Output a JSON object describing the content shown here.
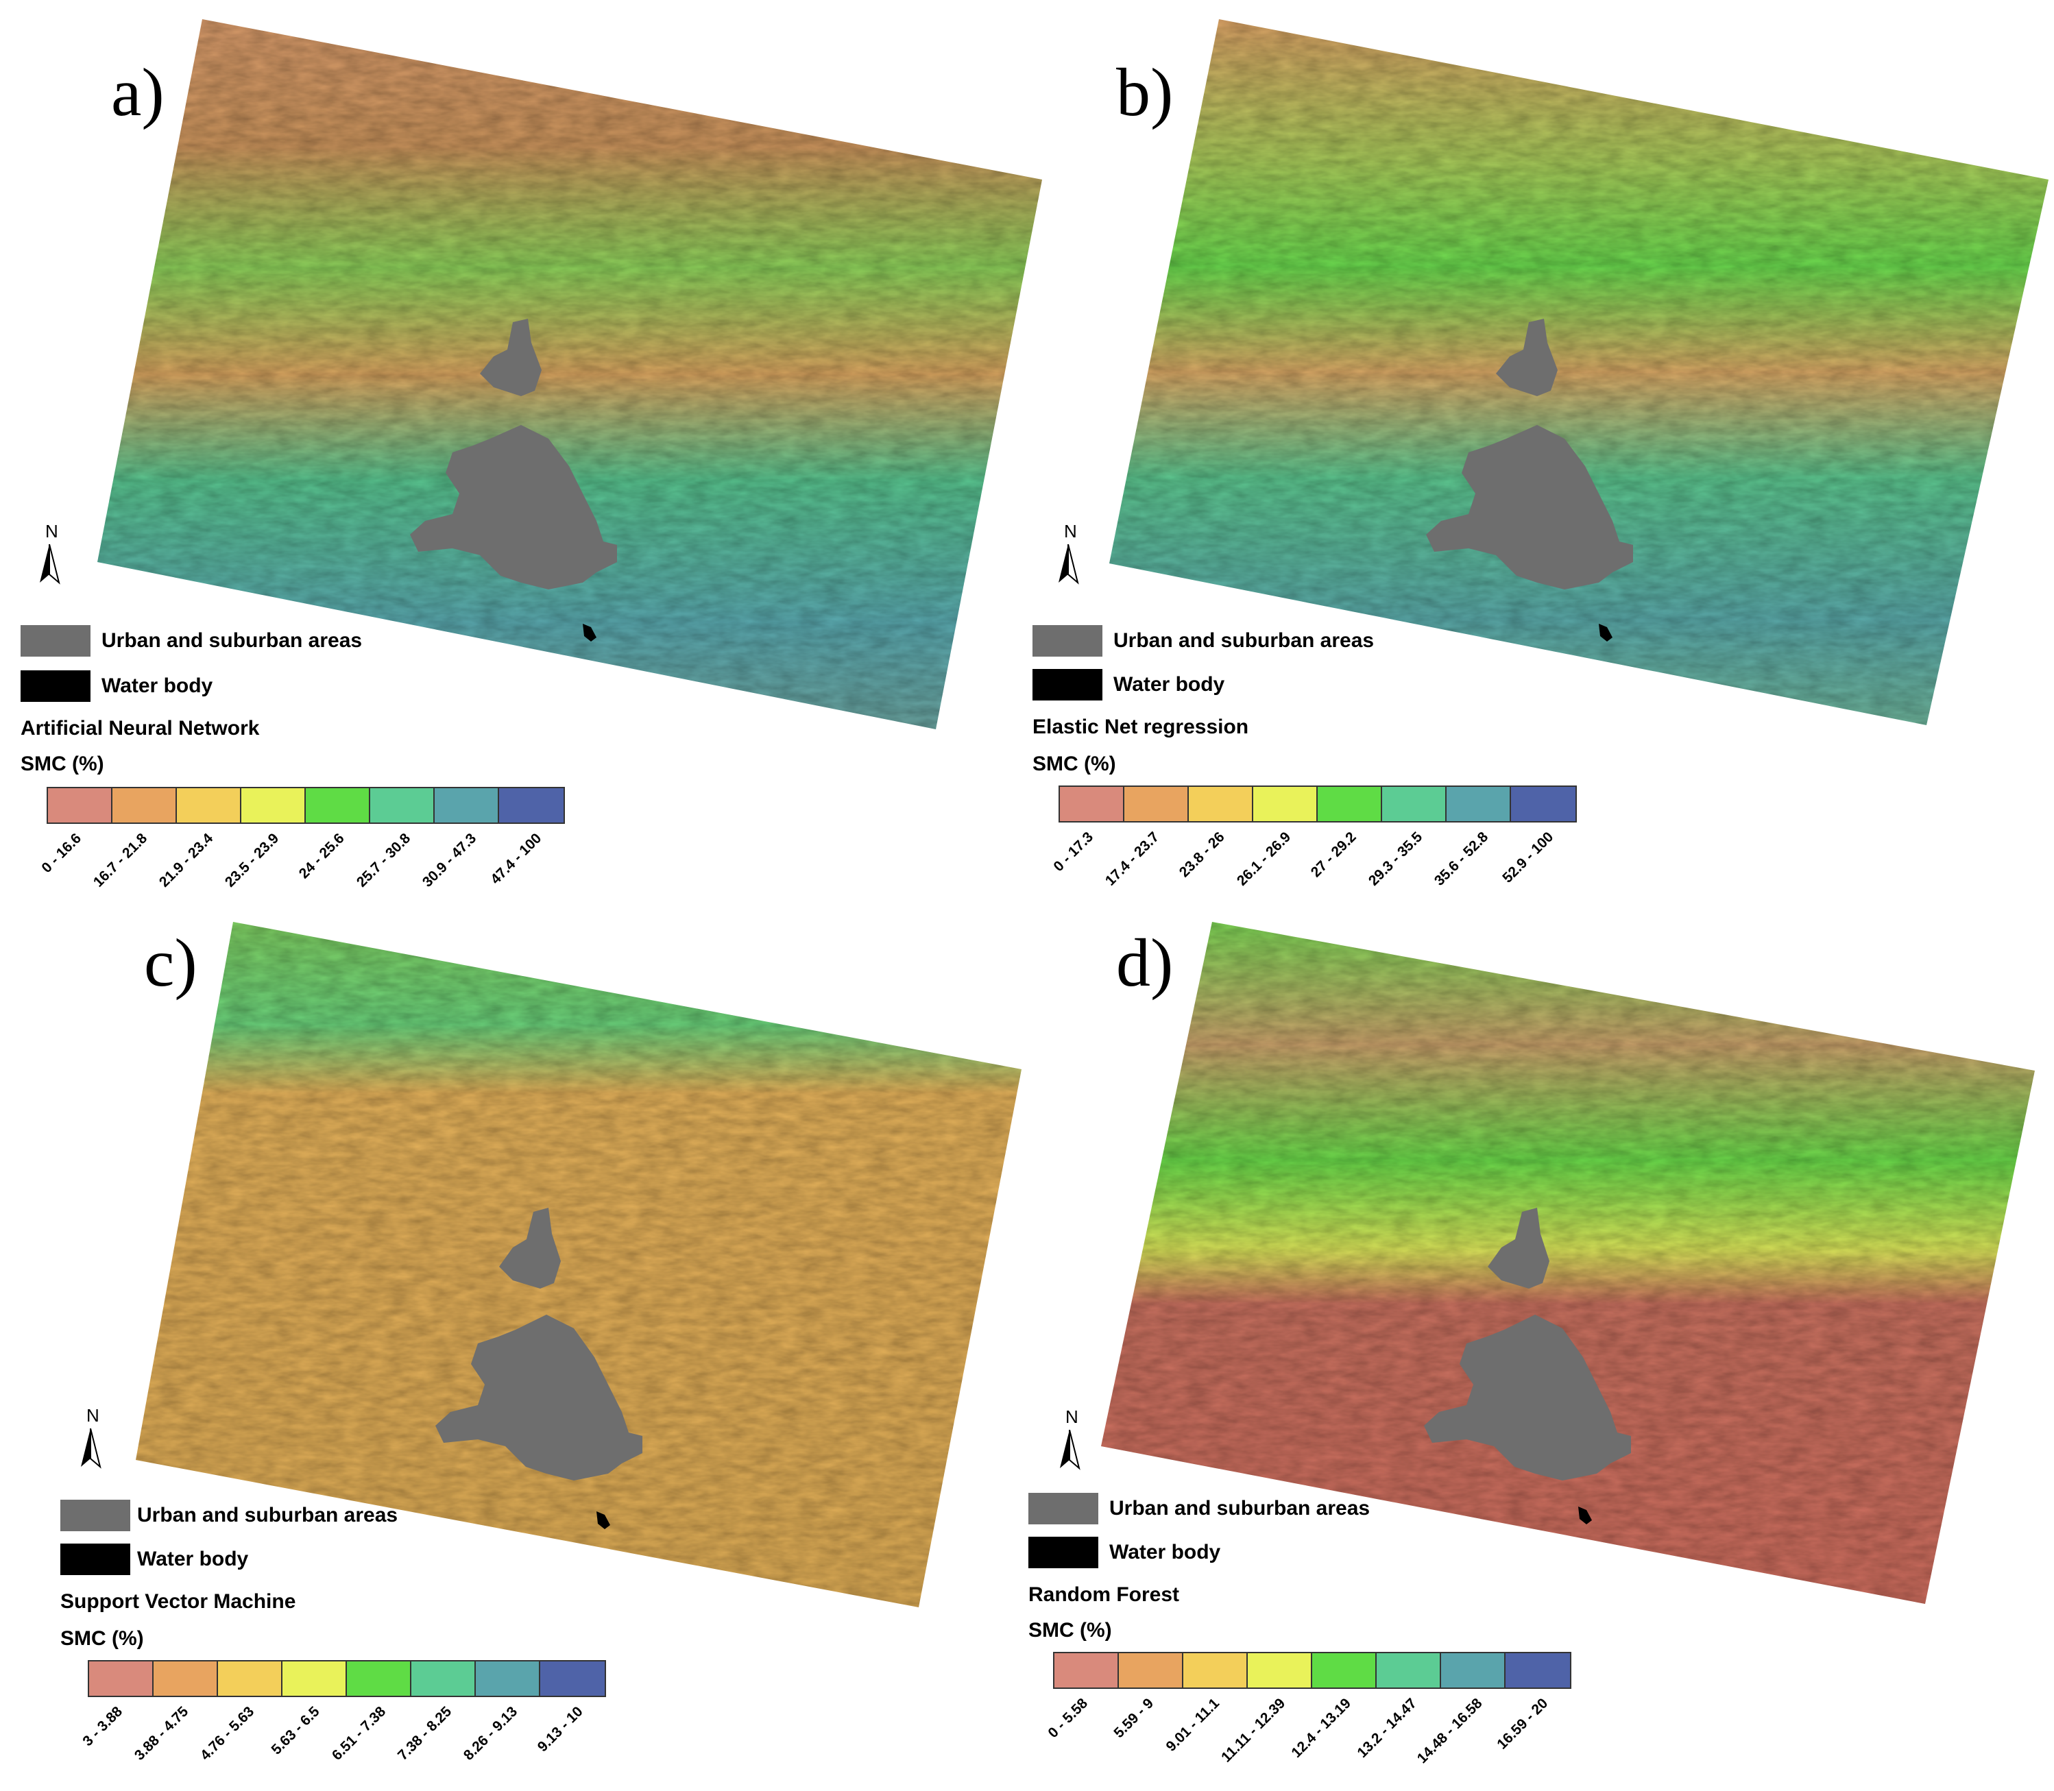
{
  "legend_common": {
    "urban_label": "Urban and suburban areas",
    "water_label": "Water body",
    "smc_label": "SMC (%)",
    "north_label": "N",
    "colors": {
      "urban": "#6e6e6e",
      "water": "#000000",
      "ramp": [
        "#d98a7c",
        "#e8a460",
        "#f3cf5a",
        "#e9f25a",
        "#5fdc45",
        "#5ccc94",
        "#5aa4ac",
        "#4f63a8"
      ]
    }
  },
  "panels": [
    {
      "letter": "a)",
      "model": "Artificial Neural Network",
      "classes": [
        "0 - 16.6",
        "16.7 - 21.8",
        "21.9 - 23.4",
        "23.5 - 23.9",
        "24 - 25.6",
        "25.7 - 30.8",
        "30.9 - 47.3",
        "47.4 - 100"
      ]
    },
    {
      "letter": "b)",
      "model": "Elastic Net regression",
      "classes": [
        "0 - 17.3",
        "17.4 - 23.7",
        "23.8 - 26",
        "26.1 - 26.9",
        "27 - 29.2",
        "29.3 - 35.5",
        "35.6 - 52.8",
        "52.9 - 100"
      ]
    },
    {
      "letter": "c)",
      "model": "Support Vector Machine",
      "classes": [
        "3 - 3.88",
        "3.88 - 4.75",
        "4.76 - 5.63",
        "5.63 - 6.5",
        "6.51 - 7.38",
        "7.38 - 8.25",
        "8.26 - 9.13",
        "9.13 - 10"
      ]
    },
    {
      "letter": "d)",
      "model": "Random Forest",
      "classes": [
        "0 - 5.58",
        "5.59 - 9",
        "9.01 - 11.1",
        "11.11 - 12.39",
        "12.4 - 13.19",
        "13.2 - 14.47",
        "14.48 - 16.58",
        "16.59 - 20"
      ]
    }
  ]
}
